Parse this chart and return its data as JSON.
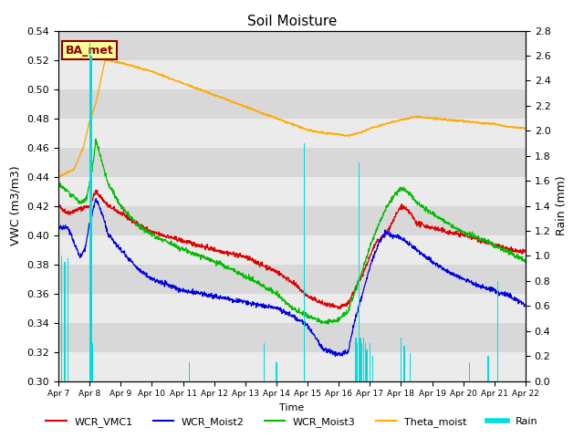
{
  "title": "Soil Moisture",
  "xlabel": "Time",
  "ylabel_left": "VWC (m3/m3)",
  "ylabel_right": "Rain (mm)",
  "ylim_left": [
    0.3,
    0.54
  ],
  "ylim_right": [
    0.0,
    2.8
  ],
  "yticks_left": [
    0.3,
    0.32,
    0.34,
    0.36,
    0.38,
    0.4,
    0.42,
    0.44,
    0.46,
    0.48,
    0.5,
    0.52,
    0.54
  ],
  "yticks_right": [
    0.0,
    0.2,
    0.4,
    0.6,
    0.8,
    1.0,
    1.2,
    1.4,
    1.6,
    1.8,
    2.0,
    2.2,
    2.4,
    2.6,
    2.8
  ],
  "xtick_labels": [
    "Apr 7",
    "Apr 8",
    "Apr 9",
    "Apr 10",
    "Apr 11",
    "Apr 12",
    "Apr 13",
    "Apr 14",
    "Apr 15",
    "Apr 16",
    "Apr 17",
    "Apr 18",
    "Apr 19",
    "Apr 20",
    "Apr 21",
    "Apr 22"
  ],
  "colors": {
    "WCR_VMC1": "#dd0000",
    "WCR_Moist2": "#0000dd",
    "WCR_Moist3": "#00bb00",
    "Theta_moist": "#ffaa00",
    "Rain": "#00dddd",
    "bg_light": "#ebebeb",
    "bg_dark": "#d8d8d8",
    "annotation_box_bg": "#ffff99",
    "annotation_box_edge": "#8b0000"
  },
  "annotation_text": "BA_met",
  "legend_entries": [
    "WCR_VMC1",
    "WCR_Moist2",
    "WCR_Moist3",
    "Theta_moist",
    "Rain"
  ]
}
